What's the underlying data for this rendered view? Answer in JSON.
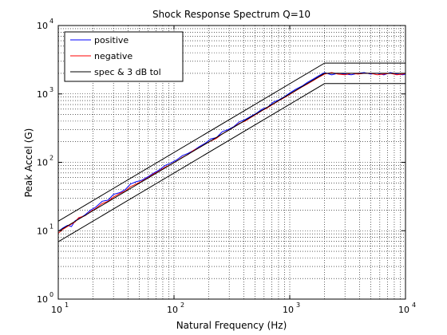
{
  "chart_data": {
    "type": "line",
    "title": "Shock Response Spectrum Q=10",
    "xlabel": "Natural Frequency (Hz)",
    "ylabel": "Peak Accel (G)",
    "xscale": "log",
    "yscale": "log",
    "xlim": [
      10,
      10000
    ],
    "ylim": [
      1,
      10000
    ],
    "x_tick_labels": [
      "10",
      "10",
      "10",
      "10"
    ],
    "x_tick_exponents": [
      "1",
      "2",
      "3",
      "4"
    ],
    "y_tick_labels": [
      "10",
      "10",
      "10",
      "10",
      "10"
    ],
    "y_tick_exponents": [
      "0",
      "1",
      "2",
      "3",
      "4"
    ],
    "grid": "on (dotted, major and minor)",
    "legend_position": "top-left",
    "legend": [
      "positive",
      "negative",
      "spec & 3 dB tol"
    ],
    "colors": {
      "positive": "#0000ff",
      "negative": "#ff0000",
      "spec": "#000000"
    },
    "series": [
      {
        "name": "positive",
        "color": "#0000ff",
        "x": [
          10,
          11,
          12,
          13,
          14,
          15,
          17,
          19,
          21,
          24,
          27,
          30,
          34,
          38,
          42,
          47,
          53,
          60,
          67,
          75,
          84,
          94,
          105,
          118,
          132,
          148,
          166,
          186,
          208,
          233,
          261,
          292,
          327,
          366,
          410,
          459,
          514,
          576,
          645,
          722,
          809,
          906,
          1015,
          1137,
          1273,
          1426,
          1597,
          1789,
          2000,
          2300,
          2600,
          3000,
          3400,
          3900,
          4400,
          5000,
          5700,
          6500,
          7400,
          8400,
          9500,
          10000
        ],
        "y": [
          9.8,
          11,
          12,
          11.5,
          14,
          15,
          17,
          20,
          22,
          27,
          28,
          34,
          36,
          40,
          48,
          52,
          55,
          62,
          70,
          78,
          90,
          98,
          108,
          125,
          135,
          150,
          170,
          190,
          220,
          230,
          280,
          300,
          330,
          390,
          420,
          470,
          520,
          600,
          640,
          760,
          820,
          920,
          1050,
          1180,
          1300,
          1480,
          1650,
          1850,
          2050,
          1900,
          2000,
          1950,
          1900,
          2000,
          2050,
          1950,
          2000,
          1900,
          2050,
          1950,
          1900,
          1950
        ]
      },
      {
        "name": "negative",
        "color": "#ff0000",
        "x": [
          10,
          11,
          12,
          13,
          14,
          15,
          17,
          19,
          21,
          24,
          27,
          30,
          34,
          38,
          42,
          47,
          53,
          60,
          67,
          75,
          84,
          94,
          105,
          118,
          132,
          148,
          166,
          186,
          208,
          233,
          261,
          292,
          327,
          366,
          410,
          459,
          514,
          576,
          645,
          722,
          809,
          906,
          1015,
          1137,
          1273,
          1426,
          1597,
          1789,
          2000,
          2300,
          2600,
          3000,
          3400,
          3900,
          4400,
          5000,
          5700,
          6500,
          7400,
          8400,
          9500,
          10000
        ],
        "y": [
          9.2,
          10.5,
          11.5,
          12.5,
          13.5,
          15.5,
          16.5,
          19,
          21,
          25,
          27,
          31,
          35,
          38,
          44,
          48,
          53,
          60,
          68,
          75,
          85,
          93,
          104,
          118,
          130,
          150,
          165,
          185,
          205,
          225,
          260,
          290,
          325,
          370,
          400,
          450,
          505,
          570,
          630,
          710,
          800,
          890,
          1000,
          1120,
          1260,
          1400,
          1570,
          1760,
          1950,
          2050,
          1950,
          1900,
          2000,
          1950,
          2000,
          2000,
          1900,
          1950,
          2000,
          1900,
          1950,
          2000
        ]
      },
      {
        "name": "spec & 3 dB tol",
        "color": "#000000",
        "lines": [
          {
            "x": [
              10,
              2000,
              10000
            ],
            "y": [
              9.8,
              2000,
              2000
            ]
          },
          {
            "x": [
              10,
              2000,
              10000
            ],
            "y": [
              13.8,
              2825,
              2825
            ]
          },
          {
            "x": [
              10,
              2000,
              10000
            ],
            "y": [
              6.9,
              1416,
              1416
            ]
          }
        ]
      }
    ]
  }
}
